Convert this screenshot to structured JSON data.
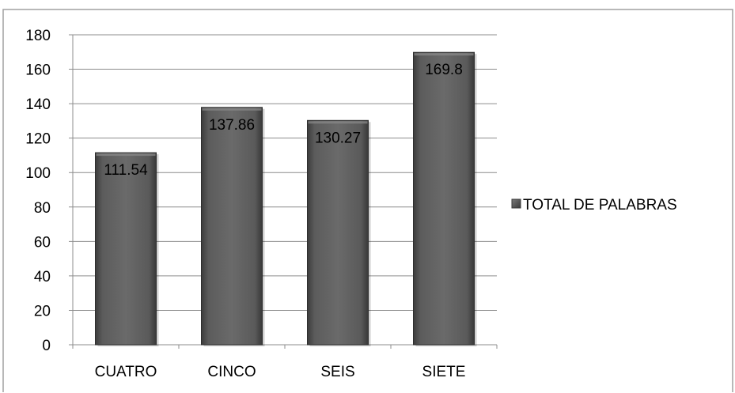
{
  "chart_data": {
    "type": "bar",
    "categories": [
      "CUATRO",
      "CINCO",
      "SEIS",
      "SIETE"
    ],
    "series": [
      {
        "name": "TOTAL DE PALABRAS",
        "values": [
          111.54,
          137.86,
          130.27,
          169.8
        ],
        "color": "#5a5a5a"
      }
    ],
    "data_labels": [
      "111.54",
      "137.86",
      "130.27",
      "169.8"
    ],
    "ylim": [
      0,
      180
    ],
    "yticks": [
      0,
      20,
      40,
      60,
      80,
      100,
      120,
      140,
      160,
      180
    ],
    "grid": true,
    "legend_position": "right",
    "title": "",
    "xlabel": "",
    "ylabel": ""
  }
}
